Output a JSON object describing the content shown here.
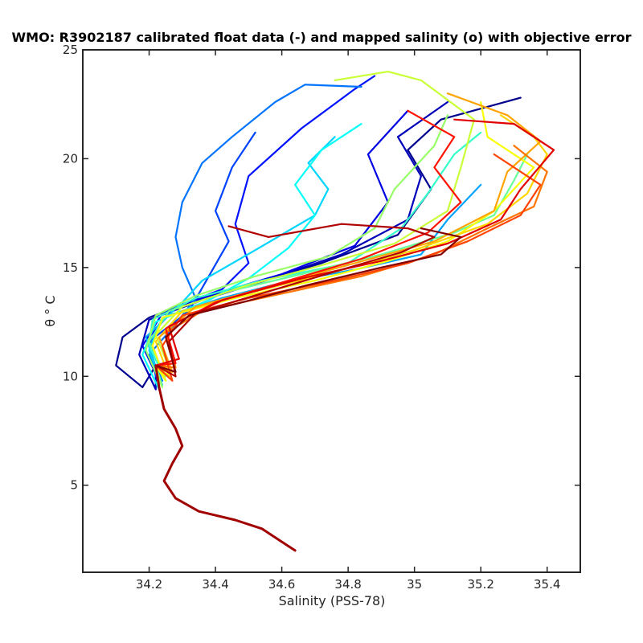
{
  "chart_data": {
    "type": "line",
    "title": "WMO: R3902187 calibrated float data (-) and mapped salinity (o) with objective error",
    "xlabel": "Salinity (PSS-78)",
    "ylabel": "θ ° C",
    "xlim": [
      34.0,
      35.5
    ],
    "ylim": [
      1.0,
      25.0
    ],
    "x_ticks": [
      34.2,
      34.4,
      34.6,
      34.8,
      35.0,
      35.2,
      35.4
    ],
    "x_tick_labels": [
      "34.2",
      "34.4",
      "34.6",
      "34.8",
      "35",
      "35.2",
      "35.4"
    ],
    "y_ticks": [
      5,
      10,
      15,
      20,
      25
    ],
    "y_tick_labels": [
      "5",
      "10",
      "15",
      "20",
      "25"
    ],
    "grid": false,
    "legend": "none",
    "colormap": "jet",
    "colormap_colors": [
      "#00008f",
      "#0000ff",
      "#0080ff",
      "#00ffff",
      "#80ff80",
      "#ffff00",
      "#ff8000",
      "#ff0000",
      "#800000"
    ],
    "deep_profile": {
      "name": "common deep θ–S curve",
      "points": [
        [
          34.64,
          2.0
        ],
        [
          34.6,
          2.4
        ],
        [
          34.54,
          3.0
        ],
        [
          34.46,
          3.4
        ],
        [
          34.35,
          3.8
        ],
        [
          34.28,
          4.4
        ],
        [
          34.245,
          5.2
        ],
        [
          34.27,
          6.0
        ],
        [
          34.3,
          6.8
        ],
        [
          34.28,
          7.6
        ],
        [
          34.245,
          8.5
        ],
        [
          34.23,
          9.5
        ],
        [
          34.22,
          10.5
        ]
      ]
    },
    "series": [
      {
        "values": [
          [
            34.18,
            9.5
          ],
          [
            34.1,
            10.5
          ],
          [
            34.12,
            11.8
          ],
          [
            34.2,
            12.7
          ],
          [
            34.32,
            13.4
          ],
          [
            34.5,
            14.2
          ],
          [
            34.72,
            15.2
          ],
          [
            34.95,
            16.5
          ],
          [
            35.05,
            18.6
          ],
          [
            34.98,
            20.4
          ],
          [
            35.08,
            21.8
          ],
          [
            35.32,
            22.8
          ]
        ]
      },
      {
        "values": [
          [
            34.22,
            9.4
          ],
          [
            34.17,
            11.0
          ],
          [
            34.2,
            12.6
          ],
          [
            34.36,
            13.5
          ],
          [
            34.55,
            14.4
          ],
          [
            34.78,
            15.6
          ],
          [
            34.98,
            17.2
          ],
          [
            35.02,
            19.2
          ],
          [
            34.95,
            21.0
          ],
          [
            35.1,
            22.6
          ]
        ]
      },
      {
        "values": [
          [
            34.23,
            9.8
          ],
          [
            34.18,
            11.4
          ],
          [
            34.24,
            12.9
          ],
          [
            34.4,
            13.8
          ],
          [
            34.6,
            14.7
          ],
          [
            34.82,
            16.0
          ],
          [
            34.92,
            18.0
          ],
          [
            34.86,
            20.2
          ],
          [
            34.98,
            22.2
          ]
        ]
      },
      {
        "values": [
          [
            34.24,
            10.2
          ],
          [
            34.2,
            11.8
          ],
          [
            34.28,
            13.2
          ],
          [
            34.42,
            14.0
          ],
          [
            34.5,
            15.2
          ],
          [
            34.46,
            17.0
          ],
          [
            34.5,
            19.2
          ],
          [
            34.66,
            21.4
          ],
          [
            34.82,
            23.2
          ],
          [
            34.88,
            23.8
          ]
        ]
      },
      {
        "values": [
          [
            34.22,
            10.0
          ],
          [
            34.2,
            11.6
          ],
          [
            34.32,
            13.0
          ],
          [
            34.38,
            14.6
          ],
          [
            34.44,
            16.2
          ],
          [
            34.4,
            17.6
          ],
          [
            34.45,
            19.6
          ],
          [
            34.52,
            21.2
          ]
        ]
      },
      {
        "values": [
          [
            34.24,
            9.8
          ],
          [
            34.2,
            11.0
          ],
          [
            34.28,
            12.4
          ],
          [
            34.34,
            13.6
          ],
          [
            34.3,
            15.0
          ],
          [
            34.28,
            16.4
          ],
          [
            34.3,
            18.0
          ],
          [
            34.36,
            19.8
          ],
          [
            34.45,
            21.0
          ],
          [
            34.58,
            22.6
          ],
          [
            34.67,
            23.4
          ],
          [
            34.84,
            23.3
          ]
        ]
      },
      {
        "values": [
          [
            34.23,
            10.0
          ],
          [
            34.19,
            11.8
          ],
          [
            34.26,
            12.8
          ],
          [
            34.42,
            13.6
          ],
          [
            34.6,
            14.3
          ],
          [
            34.82,
            14.9
          ],
          [
            35.02,
            15.6
          ],
          [
            35.1,
            17.2
          ],
          [
            35.2,
            18.8
          ]
        ]
      },
      {
        "values": [
          [
            34.24,
            9.6
          ],
          [
            34.2,
            11.2
          ],
          [
            34.23,
            12.4
          ],
          [
            34.3,
            13.4
          ],
          [
            34.36,
            14.4
          ],
          [
            34.52,
            15.8
          ],
          [
            34.7,
            17.4
          ],
          [
            34.74,
            18.6
          ],
          [
            34.68,
            19.8
          ],
          [
            34.76,
            21.0
          ]
        ]
      },
      {
        "values": [
          [
            34.23,
            9.4
          ],
          [
            34.18,
            11.0
          ],
          [
            34.22,
            12.5
          ],
          [
            34.38,
            13.5
          ],
          [
            34.5,
            14.5
          ],
          [
            34.62,
            15.9
          ],
          [
            34.7,
            17.4
          ],
          [
            34.64,
            18.8
          ],
          [
            34.72,
            20.4
          ],
          [
            34.84,
            21.6
          ]
        ]
      },
      {
        "values": [
          [
            34.25,
            9.8
          ],
          [
            34.2,
            11.4
          ],
          [
            34.21,
            12.6
          ],
          [
            34.34,
            13.6
          ],
          [
            34.54,
            14.4
          ],
          [
            34.8,
            15.2
          ],
          [
            34.96,
            16.8
          ],
          [
            35.04,
            18.4
          ],
          [
            35.12,
            20.2
          ],
          [
            35.2,
            21.2
          ]
        ]
      },
      {
        "values": [
          [
            34.25,
            10.0
          ],
          [
            34.2,
            11.6
          ],
          [
            34.26,
            13.0
          ],
          [
            34.44,
            13.9
          ],
          [
            34.66,
            14.7
          ],
          [
            34.9,
            15.6
          ],
          [
            35.12,
            16.6
          ],
          [
            35.24,
            17.4
          ],
          [
            35.3,
            19.0
          ],
          [
            35.34,
            20.2
          ]
        ]
      },
      {
        "values": [
          [
            34.24,
            9.5
          ],
          [
            34.19,
            11.2
          ],
          [
            34.22,
            12.8
          ],
          [
            34.34,
            13.7
          ],
          [
            34.52,
            14.6
          ],
          [
            34.74,
            15.5
          ],
          [
            34.88,
            16.8
          ],
          [
            34.94,
            18.6
          ],
          [
            35.06,
            20.6
          ],
          [
            35.1,
            22.0
          ]
        ]
      },
      {
        "values": [
          [
            34.26,
            10.4
          ],
          [
            34.22,
            11.9
          ],
          [
            34.3,
            13.2
          ],
          [
            34.5,
            14.2
          ],
          [
            34.72,
            15.1
          ],
          [
            34.94,
            16.1
          ],
          [
            35.1,
            17.6
          ],
          [
            35.14,
            19.6
          ],
          [
            35.18,
            21.8
          ],
          [
            35.02,
            23.6
          ],
          [
            34.92,
            24.0
          ],
          [
            34.76,
            23.6
          ]
        ]
      },
      {
        "values": [
          [
            34.25,
            9.8
          ],
          [
            34.21,
            11.4
          ],
          [
            34.24,
            12.7
          ],
          [
            34.46,
            13.6
          ],
          [
            34.7,
            14.4
          ],
          [
            34.92,
            15.3
          ],
          [
            35.1,
            16.2
          ],
          [
            35.24,
            17.6
          ],
          [
            35.36,
            19.6
          ],
          [
            35.22,
            21.0
          ],
          [
            35.2,
            22.6
          ]
        ]
      },
      {
        "values": [
          [
            34.26,
            10.0
          ],
          [
            34.22,
            11.6
          ],
          [
            34.3,
            13.0
          ],
          [
            34.52,
            13.9
          ],
          [
            34.76,
            14.8
          ],
          [
            35.0,
            15.8
          ],
          [
            35.22,
            17.0
          ],
          [
            35.34,
            18.4
          ],
          [
            35.4,
            20.2
          ],
          [
            35.36,
            21.0
          ],
          [
            35.26,
            22.0
          ]
        ]
      },
      {
        "values": [
          [
            34.27,
            10.2
          ],
          [
            34.23,
            11.8
          ],
          [
            34.34,
            13.2
          ],
          [
            34.58,
            14.2
          ],
          [
            34.82,
            15.2
          ],
          [
            35.06,
            16.2
          ],
          [
            35.24,
            17.6
          ],
          [
            35.28,
            19.4
          ],
          [
            35.38,
            20.8
          ],
          [
            35.28,
            22.0
          ],
          [
            35.1,
            23.0
          ]
        ]
      },
      {
        "values": [
          [
            34.28,
            10.4
          ],
          [
            34.25,
            12.0
          ],
          [
            34.36,
            13.0
          ],
          [
            34.6,
            13.8
          ],
          [
            34.84,
            14.6
          ],
          [
            35.06,
            15.6
          ],
          [
            35.22,
            16.8
          ],
          [
            35.36,
            17.8
          ],
          [
            35.4,
            19.4
          ],
          [
            35.3,
            20.6
          ]
        ]
      },
      {
        "values": [
          [
            34.27,
            9.8
          ],
          [
            34.24,
            11.4
          ],
          [
            34.3,
            12.8
          ],
          [
            34.5,
            13.6
          ],
          [
            34.76,
            14.4
          ],
          [
            34.98,
            15.2
          ],
          [
            35.16,
            16.2
          ],
          [
            35.32,
            17.4
          ],
          [
            35.38,
            18.8
          ],
          [
            35.24,
            20.2
          ]
        ]
      },
      {
        "values": [
          [
            34.28,
            10.6
          ],
          [
            34.25,
            12.2
          ],
          [
            34.4,
            13.4
          ],
          [
            34.62,
            14.4
          ],
          [
            34.84,
            15.4
          ],
          [
            35.04,
            16.6
          ],
          [
            35.14,
            18.0
          ],
          [
            35.06,
            19.6
          ],
          [
            35.12,
            21.0
          ],
          [
            34.98,
            22.2
          ]
        ]
      },
      {
        "values": [
          [
            34.29,
            10.8
          ],
          [
            34.26,
            12.3
          ],
          [
            34.42,
            13.5
          ],
          [
            34.66,
            14.5
          ],
          [
            34.9,
            15.3
          ],
          [
            35.1,
            16.1
          ],
          [
            35.26,
            17.2
          ],
          [
            35.32,
            18.6
          ],
          [
            35.42,
            20.4
          ],
          [
            35.3,
            21.6
          ],
          [
            35.12,
            21.8
          ]
        ]
      },
      {
        "values": [
          [
            34.28,
            10.0
          ],
          [
            34.26,
            11.6
          ],
          [
            34.34,
            12.9
          ],
          [
            34.56,
            13.9
          ],
          [
            34.78,
            14.9
          ],
          [
            34.96,
            15.7
          ],
          [
            35.06,
            16.4
          ],
          [
            34.98,
            16.8
          ],
          [
            34.78,
            17.0
          ],
          [
            34.56,
            16.4
          ],
          [
            34.44,
            16.9
          ]
        ]
      },
      {
        "values": [
          [
            34.28,
            10.2
          ],
          [
            34.25,
            11.8
          ],
          [
            34.32,
            12.8
          ],
          [
            34.48,
            13.4
          ],
          [
            34.68,
            14.2
          ],
          [
            34.9,
            15.0
          ],
          [
            35.08,
            15.6
          ],
          [
            35.14,
            16.4
          ],
          [
            35.02,
            16.8
          ]
        ]
      }
    ]
  }
}
